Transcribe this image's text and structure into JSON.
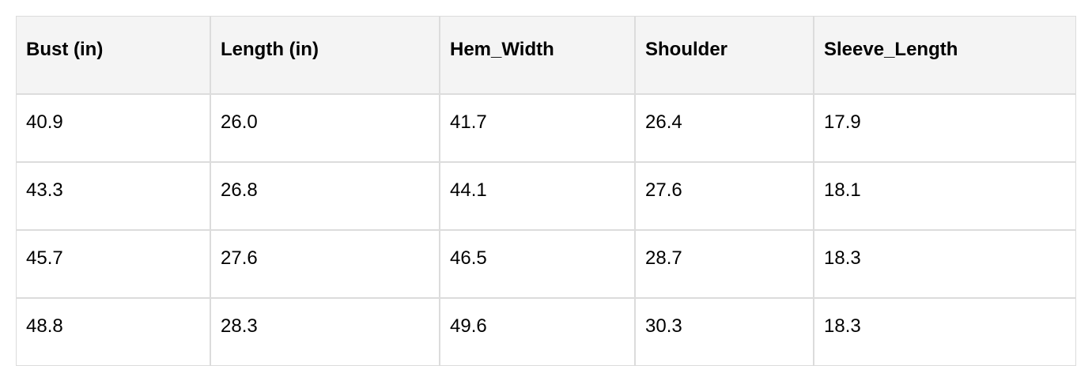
{
  "table": {
    "headers": [
      "Bust (in)",
      "Length (in)",
      "Hem_Width",
      "Shoulder",
      "Sleeve_Length"
    ],
    "rows": [
      [
        "40.9",
        "26.0",
        "41.7",
        "26.4",
        "17.9"
      ],
      [
        "43.3",
        "26.8",
        "44.1",
        "27.6",
        "18.1"
      ],
      [
        "45.7",
        "27.6",
        "46.5",
        "28.7",
        "18.3"
      ],
      [
        "48.8",
        "28.3",
        "49.6",
        "30.3",
        "18.3"
      ]
    ]
  }
}
